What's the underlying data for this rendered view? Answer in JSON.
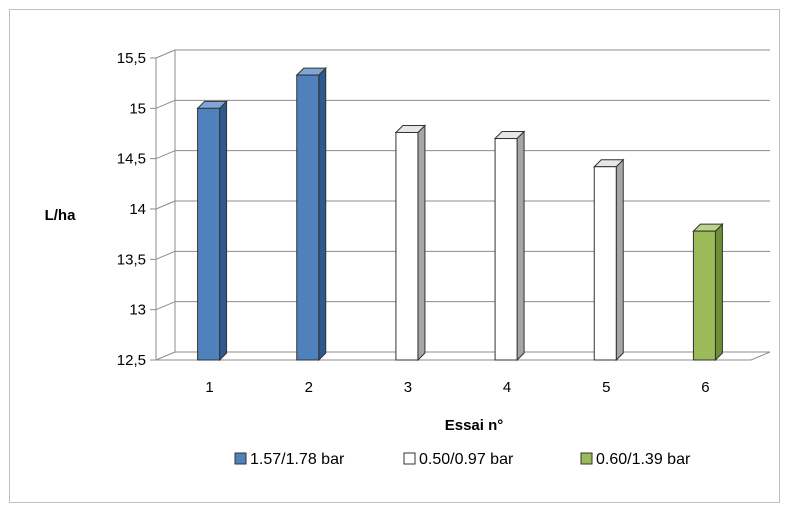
{
  "chart_data": {
    "type": "bar",
    "title": "",
    "xlabel": "Essai n°",
    "ylabel": "L/ha",
    "categories": [
      "1",
      "2",
      "3",
      "4",
      "5",
      "6"
    ],
    "values": [
      15.0,
      15.33,
      14.76,
      14.7,
      14.42,
      13.78
    ],
    "bar_series": [
      0,
      0,
      1,
      1,
      1,
      2
    ],
    "ylim": [
      12.5,
      15.5
    ],
    "yticks": [
      "12,5",
      "13",
      "13,5",
      "14",
      "14,5",
      "15",
      "15,5"
    ],
    "grid": true,
    "legend_position": "bottom",
    "series": [
      {
        "name": "1.57/1.78 bar",
        "color": "#4f81bd",
        "side_color": "#2c5a8f",
        "top_color": "#7fa6d6"
      },
      {
        "name": "0.50/0.97 bar",
        "color": "#ffffff",
        "side_color": "#a6a6a6",
        "top_color": "#e6e6e6"
      },
      {
        "name": "0.60/1.39 bar",
        "color": "#9bbb59",
        "side_color": "#6f8f33",
        "top_color": "#bcd38a"
      }
    ]
  }
}
